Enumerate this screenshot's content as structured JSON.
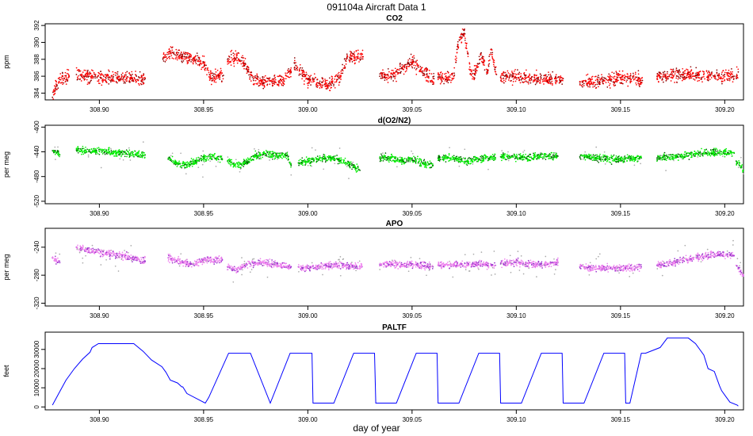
{
  "figure": {
    "title": "091104a   Aircraft Data 1",
    "xlabel": "day of year",
    "xlim": [
      308.874,
      309.209
    ],
    "x_ticks": [
      308.9,
      308.95,
      309.0,
      309.05,
      309.1,
      309.15,
      309.2
    ],
    "x_tick_labels": [
      "308.90",
      "308.95",
      "309.00",
      "309.05",
      "309.10",
      "309.15",
      "309.20"
    ]
  },
  "chart_data": [
    {
      "type": "scatter",
      "title": "CO2",
      "ylabel": "ppm",
      "ylim": [
        383.2,
        392.2
      ],
      "y_ticks": [
        384,
        386,
        388,
        390,
        392
      ],
      "y_tick_labels": [
        "384",
        "386",
        "388",
        "390",
        "392"
      ],
      "colors": {
        "main": "#ff0000",
        "dark": "#8b0000"
      },
      "noise": 0.55,
      "outlier_rate": 0.0,
      "x_gaps": [
        [
          308.8865,
          308.889
        ],
        [
          308.9225,
          308.9305
        ],
        [
          308.9595,
          308.9615
        ],
        [
          308.992,
          308.9935
        ],
        [
          309.0265,
          309.0345
        ],
        [
          309.0605,
          309.0625
        ],
        [
          309.0905,
          309.0925
        ],
        [
          309.1225,
          309.1305
        ],
        [
          309.1605,
          309.1675
        ],
        [
          309.2045,
          309.2055
        ],
        [
          309.2065,
          309.21
        ]
      ],
      "series": [
        {
          "name": "CO2",
          "x": [
            308.8775,
            308.879,
            308.881,
            308.8855,
            308.889,
            308.895,
            308.905,
            308.915,
            308.922,
            308.9305,
            308.935,
            308.94,
            308.945,
            308.95,
            308.9535,
            308.957,
            308.9595,
            308.9615,
            308.966,
            308.97,
            308.974,
            308.978,
            308.984,
            308.988,
            308.992,
            308.9935,
            308.996,
            309.0,
            309.005,
            309.01,
            309.015,
            309.019,
            309.022,
            309.0265,
            309.0345,
            309.04,
            309.045,
            309.05,
            309.055,
            309.0605,
            309.0625,
            309.066,
            309.07,
            309.072,
            309.075,
            309.078,
            309.08,
            309.083,
            309.086,
            309.088,
            309.0905,
            309.0925,
            309.097,
            309.102,
            309.11,
            309.1225,
            309.1305,
            309.14,
            309.15,
            309.1605,
            309.1675,
            309.18,
            309.195,
            309.2045,
            309.2055,
            309.2065
          ],
          "y": [
            383.5,
            384.6,
            385.6,
            386.0,
            386.2,
            386.0,
            385.9,
            385.7,
            385.7,
            388.0,
            388.8,
            388.3,
            388.1,
            387.6,
            385.7,
            386.0,
            386.1,
            388.0,
            388.2,
            387.5,
            385.5,
            385.3,
            385.4,
            385.6,
            386.5,
            387.6,
            386.7,
            385.6,
            385.2,
            385.1,
            385.8,
            388.4,
            388.3,
            388.3,
            386.0,
            385.9,
            386.9,
            387.7,
            386.6,
            385.7,
            385.9,
            385.6,
            386.0,
            389.7,
            391.4,
            386.3,
            386.2,
            388.5,
            386.5,
            389.2,
            386.2,
            385.9,
            386.0,
            385.9,
            385.7,
            385.7,
            385.3,
            385.4,
            385.8,
            385.5,
            386.0,
            386.2,
            386.0,
            386.0,
            386.0,
            386.5
          ]
        }
      ]
    },
    {
      "type": "scatter",
      "title": "d(O2/N2)",
      "ylabel": "per meg",
      "ylim": [
        -524,
        -397
      ],
      "y_ticks": [
        -400,
        -440,
        -480,
        -520
      ],
      "y_tick_labels": [
        "-400",
        "-440",
        "-480",
        "-520"
      ],
      "colors": {
        "main": "#00ee00",
        "dark": "#006400",
        "gray": "#a9a9a9"
      },
      "noise": 4.0,
      "outlier_rate": 0.05,
      "x_gaps": [
        [
          308.881,
          308.889
        ],
        [
          308.9225,
          308.933
        ],
        [
          308.9595,
          308.9615
        ],
        [
          308.992,
          308.9955
        ],
        [
          309.0265,
          309.0345
        ],
        [
          309.0605,
          309.0625
        ],
        [
          309.0905,
          309.0925
        ],
        [
          309.1225,
          309.1305
        ],
        [
          309.1605,
          309.1675
        ],
        [
          309.2045,
          309.2055
        ]
      ],
      "series": [
        {
          "name": "d(O2/N2)",
          "x": [
            308.8775,
            308.881,
            308.889,
            308.895,
            308.905,
            308.915,
            308.922,
            308.933,
            308.938,
            308.942,
            308.946,
            308.95,
            308.954,
            308.959,
            308.9615,
            308.965,
            308.97,
            308.975,
            308.98,
            308.985,
            308.99,
            308.992,
            308.9955,
            309.0,
            309.005,
            309.01,
            309.015,
            309.02,
            309.025,
            309.0345,
            309.04,
            309.045,
            309.05,
            309.055,
            309.06,
            309.0625,
            309.07,
            309.076,
            309.082,
            309.088,
            309.09,
            309.0925,
            309.1,
            309.105,
            309.11,
            309.115,
            309.12,
            309.1305,
            309.14,
            309.15,
            309.16,
            309.1675,
            309.175,
            309.185,
            309.195,
            309.2045,
            309.2055,
            309.209
          ],
          "y": [
            -438,
            -445,
            -437,
            -438,
            -440,
            -443,
            -445,
            -452,
            -460,
            -462,
            -456,
            -450,
            -448,
            -452,
            -455,
            -462,
            -458,
            -446,
            -444,
            -445,
            -446,
            -462,
            -458,
            -455,
            -452,
            -450,
            -453,
            -460,
            -470,
            -450,
            -450,
            -455,
            -452,
            -458,
            -462,
            -450,
            -450,
            -455,
            -452,
            -448,
            -450,
            -448,
            -448,
            -450,
            -446,
            -447,
            -447,
            -448,
            -450,
            -452,
            -450,
            -450,
            -448,
            -444,
            -440,
            -442,
            -455,
            -470
          ]
        }
      ]
    },
    {
      "type": "scatter",
      "title": "APO",
      "ylabel": "per meg",
      "ylim": [
        -324,
        -213
      ],
      "y_ticks": [
        -240,
        -280,
        -320
      ],
      "y_tick_labels": [
        "-240",
        "-280",
        "-320"
      ],
      "colors": {
        "main": "#ee82ee",
        "dark": "#9932cc",
        "gray": "#a9a9a9"
      },
      "noise": 3.5,
      "outlier_rate": 0.05,
      "x_gaps": [
        [
          308.881,
          308.889
        ],
        [
          308.9225,
          308.933
        ],
        [
          308.9595,
          308.9615
        ],
        [
          308.992,
          308.9955
        ],
        [
          309.0265,
          309.0345
        ],
        [
          309.0605,
          309.0625
        ],
        [
          309.0905,
          309.0925
        ],
        [
          309.1225,
          309.1305
        ],
        [
          309.1605,
          309.1675
        ],
        [
          309.2045,
          309.2055
        ]
      ],
      "series": [
        {
          "name": "APO",
          "x": [
            308.8775,
            308.881,
            308.889,
            308.895,
            308.905,
            308.915,
            308.922,
            308.933,
            308.94,
            308.945,
            308.95,
            308.955,
            308.959,
            308.9615,
            308.966,
            308.97,
            308.975,
            308.98,
            308.985,
            308.992,
            308.9955,
            309.0,
            309.005,
            309.01,
            309.015,
            309.02,
            309.026,
            309.0345,
            309.04,
            309.045,
            309.05,
            309.055,
            309.06,
            309.0625,
            309.07,
            309.08,
            309.09,
            309.0925,
            309.1,
            309.11,
            309.12,
            309.1305,
            309.14,
            309.15,
            309.16,
            309.1675,
            309.175,
            309.185,
            309.195,
            309.2045,
            309.2055,
            309.209
          ],
          "y": [
            -255,
            -262,
            -240,
            -245,
            -250,
            -255,
            -260,
            -255,
            -262,
            -265,
            -258,
            -258,
            -258,
            -268,
            -272,
            -265,
            -262,
            -262,
            -265,
            -268,
            -268,
            -270,
            -268,
            -266,
            -266,
            -266,
            -268,
            -265,
            -264,
            -265,
            -264,
            -266,
            -268,
            -266,
            -265,
            -264,
            -266,
            -264,
            -262,
            -265,
            -262,
            -268,
            -270,
            -270,
            -268,
            -266,
            -262,
            -255,
            -250,
            -252,
            -266,
            -280
          ]
        }
      ]
    },
    {
      "type": "line",
      "title": "PALTF",
      "ylabel": "feet",
      "ylim": [
        -1500,
        39000
      ],
      "y_ticks": [
        0,
        10000,
        20000,
        30000
      ],
      "y_tick_labels": [
        "0",
        "10000",
        "20000",
        "30000"
      ],
      "colors": {
        "main": "#0000ff"
      },
      "series": [
        {
          "name": "PALTF",
          "x": [
            308.8775,
            308.8805,
            308.884,
            308.888,
            308.892,
            308.8955,
            308.8965,
            308.8995,
            308.9165,
            308.921,
            308.925,
            308.93,
            308.932,
            308.934,
            308.9375,
            308.9395,
            308.94,
            308.942,
            308.9508,
            308.9525,
            308.962,
            308.9716,
            308.9725,
            308.982,
            308.9915,
            309.002,
            309.0025,
            309.0125,
            309.022,
            309.032,
            309.0326,
            309.0425,
            309.052,
            309.062,
            309.0625,
            309.0725,
            309.082,
            309.092,
            309.0925,
            309.1025,
            309.112,
            309.122,
            309.1225,
            309.1325,
            309.142,
            309.152,
            309.1525,
            309.1545,
            309.16,
            309.162,
            309.169,
            309.1725,
            309.1825,
            309.186,
            309.19,
            309.192,
            309.195,
            309.1975,
            309.1985,
            309.2005,
            309.2025,
            309.206,
            309.2065
          ],
          "y": [
            1000,
            7000,
            14000,
            20000,
            25000,
            28500,
            31000,
            33000,
            33000,
            29000,
            24500,
            21000,
            18000,
            14000,
            12500,
            10500,
            10500,
            7000,
            2000,
            5000,
            28000,
            28000,
            28000,
            2000,
            28000,
            28000,
            2000,
            2000,
            28000,
            28000,
            2000,
            2000,
            28000,
            28000,
            2000,
            2000,
            28000,
            28000,
            2000,
            2000,
            28000,
            28000,
            2000,
            2000,
            28000,
            28000,
            2000,
            2000,
            28000,
            28000,
            31000,
            36000,
            36000,
            33000,
            27000,
            20000,
            18500,
            11000,
            8500,
            5500,
            2500,
            1000,
            500
          ]
        }
      ]
    }
  ]
}
